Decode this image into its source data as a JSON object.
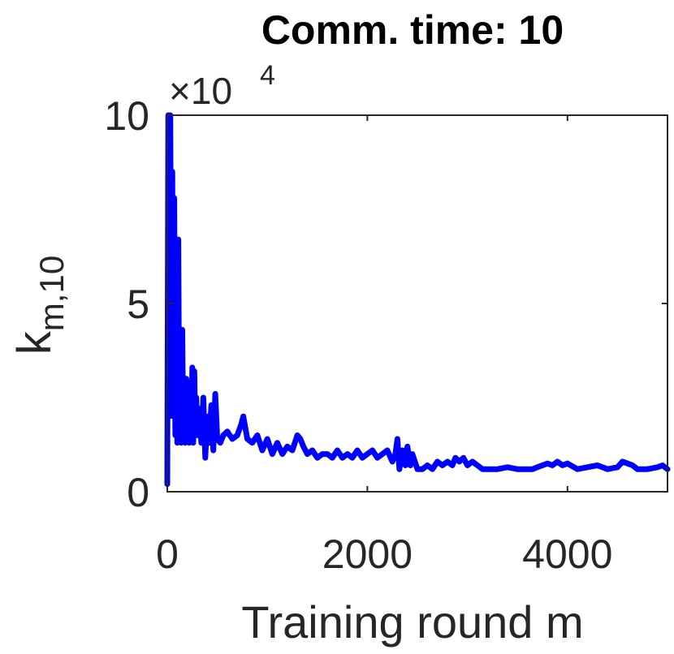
{
  "chart_data": {
    "type": "line",
    "title": "Comm. time: 10",
    "xlabel": "Training round m",
    "ylabel_main": "k",
    "ylabel_sub": "m,10",
    "y_multiplier_base": "×10",
    "y_multiplier_exp": "4",
    "xlim": [
      0,
      5000
    ],
    "ylim": [
      0,
      10
    ],
    "xticks": [
      0,
      2000,
      4000
    ],
    "xtick_labels": [
      "0",
      "2000",
      "4000"
    ],
    "yticks": [
      0,
      5,
      10
    ],
    "ytick_labels": [
      "0",
      "5",
      "10"
    ],
    "grid": false,
    "series": [
      {
        "color": "#0000ff",
        "x": [
          0,
          10,
          20,
          30,
          40,
          50,
          60,
          70,
          80,
          90,
          100,
          110,
          120,
          130,
          140,
          150,
          160,
          170,
          180,
          190,
          200,
          210,
          220,
          230,
          240,
          250,
          260,
          270,
          280,
          290,
          300,
          320,
          340,
          360,
          380,
          400,
          420,
          440,
          460,
          480,
          500,
          530,
          560,
          600,
          650,
          700,
          740,
          760,
          780,
          800,
          850,
          900,
          950,
          1000,
          1050,
          1100,
          1150,
          1200,
          1250,
          1300,
          1330,
          1360,
          1400,
          1450,
          1500,
          1550,
          1600,
          1650,
          1700,
          1750,
          1800,
          1850,
          1900,
          1950,
          2000,
          2050,
          2100,
          2150,
          2200,
          2250,
          2280,
          2300,
          2320,
          2350,
          2380,
          2400,
          2430,
          2450,
          2500,
          2550,
          2600,
          2650,
          2700,
          2750,
          2800,
          2850,
          2880,
          2920,
          2960,
          3000,
          3050,
          3100,
          3150,
          3200,
          3300,
          3400,
          3500,
          3600,
          3650,
          3700,
          3750,
          3800,
          3850,
          3900,
          3950,
          4000,
          4100,
          4200,
          4300,
          4400,
          4500,
          4550,
          4600,
          4650,
          4700,
          4800,
          4900,
          4950,
          5000
        ],
        "y": [
          0.2,
          10,
          2.0,
          10,
          3.5,
          8.5,
          2.0,
          7.8,
          1.5,
          6.5,
          1.3,
          6.7,
          1.5,
          4.0,
          1.3,
          4.3,
          1.4,
          3.0,
          1.3,
          3.0,
          1.8,
          2.8,
          1.3,
          2.9,
          1.5,
          3.3,
          1.3,
          3.2,
          1.6,
          2.5,
          1.5,
          2.2,
          1.3,
          2.5,
          0.9,
          2.0,
          1.3,
          2.3,
          1.1,
          2.6,
          1.4,
          1.3,
          1.5,
          1.6,
          1.4,
          1.5,
          1.8,
          2.0,
          1.7,
          1.4,
          1.3,
          1.5,
          1.1,
          1.4,
          1.0,
          1.3,
          1.0,
          1.2,
          1.1,
          1.5,
          1.4,
          1.2,
          1.0,
          1.1,
          0.9,
          1.0,
          1.0,
          0.9,
          1.1,
          0.9,
          1.0,
          0.9,
          1.1,
          0.9,
          1.0,
          1.1,
          0.9,
          1.0,
          1.1,
          0.8,
          1.0,
          1.4,
          0.6,
          1.1,
          0.7,
          1.2,
          0.7,
          1.0,
          0.6,
          0.6,
          0.7,
          0.6,
          0.8,
          0.7,
          0.8,
          0.7,
          0.9,
          0.8,
          0.9,
          0.7,
          0.8,
          0.7,
          0.6,
          0.6,
          0.6,
          0.65,
          0.6,
          0.6,
          0.6,
          0.65,
          0.7,
          0.75,
          0.7,
          0.8,
          0.7,
          0.75,
          0.6,
          0.65,
          0.7,
          0.6,
          0.65,
          0.8,
          0.75,
          0.7,
          0.6,
          0.6,
          0.65,
          0.7,
          0.6
        ]
      }
    ]
  }
}
